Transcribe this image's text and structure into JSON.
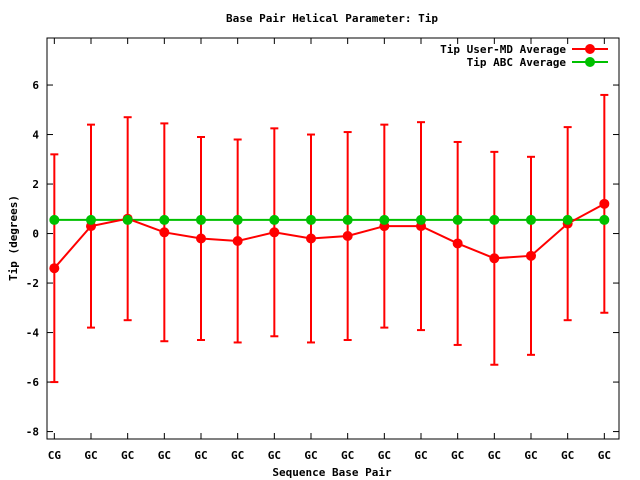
{
  "chart_data": {
    "type": "line",
    "title": "Base Pair Helical Parameter: Tip",
    "xlabel": "Sequence Base Pair",
    "ylabel": "Tip (degrees)",
    "categories": [
      "CG",
      "GC",
      "GC",
      "GC",
      "GC",
      "GC",
      "GC",
      "GC",
      "GC",
      "GC",
      "GC",
      "GC",
      "GC",
      "GC",
      "GC",
      "GC"
    ],
    "xlim": [
      0.8,
      16.4
    ],
    "ylim": [
      -8.3,
      7.9
    ],
    "yticks": [
      -8,
      -6,
      -4,
      -2,
      0,
      2,
      4,
      6
    ],
    "grid": false,
    "legend_position": "top-right",
    "series": [
      {
        "name": "Tip User-MD Average",
        "color": "#ff0000",
        "values": [
          -1.4,
          0.3,
          0.6,
          0.05,
          -0.2,
          -0.3,
          0.05,
          -0.2,
          -0.1,
          0.3,
          0.3,
          -0.4,
          -1.0,
          -0.9,
          0.4,
          1.2
        ],
        "error": [
          4.6,
          4.1,
          4.1,
          4.4,
          4.1,
          4.1,
          4.2,
          4.2,
          4.2,
          4.1,
          4.2,
          4.1,
          4.3,
          4.0,
          3.9,
          4.4
        ]
      },
      {
        "name": "Tip ABC Average",
        "color": "#00c000",
        "values": [
          0.55,
          0.55,
          0.55,
          0.55,
          0.55,
          0.55,
          0.55,
          0.55,
          0.55,
          0.55,
          0.55,
          0.55,
          0.55,
          0.55,
          0.55,
          0.55
        ]
      }
    ]
  }
}
